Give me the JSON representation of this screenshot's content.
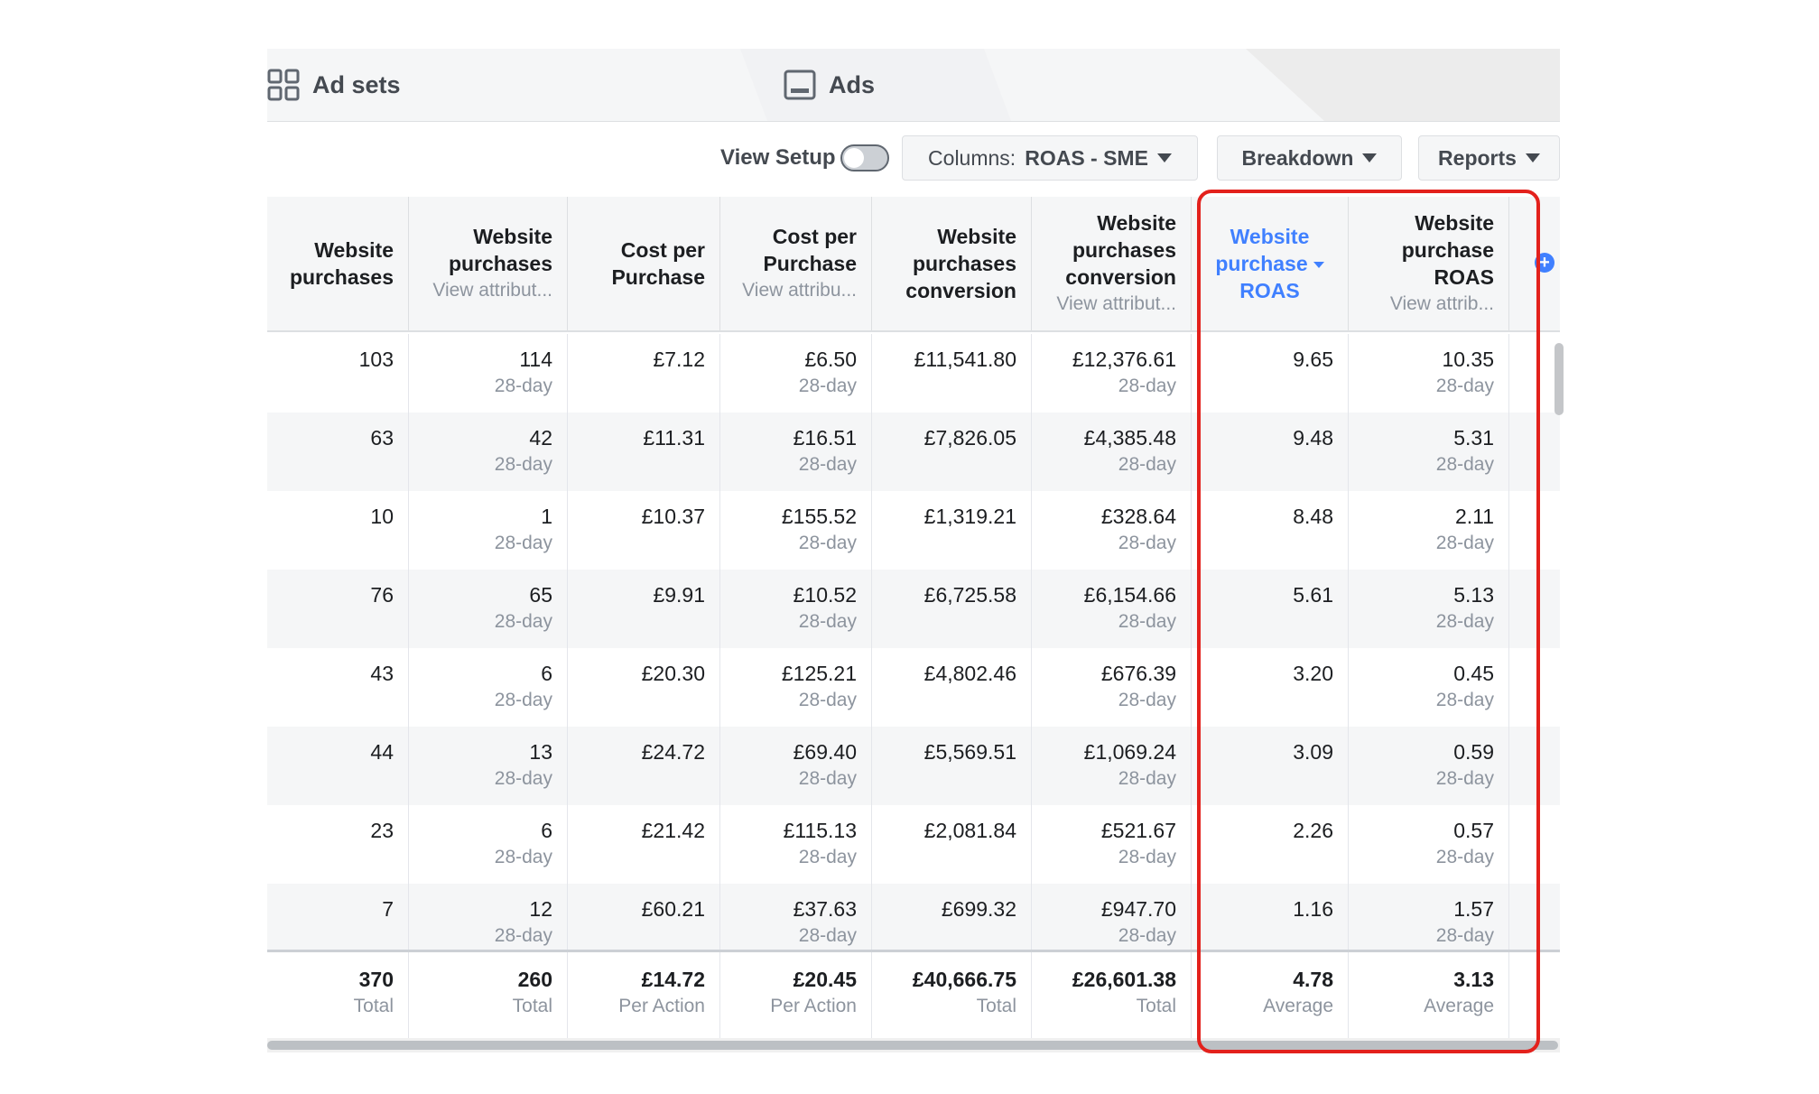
{
  "tabs": [
    {
      "label": "Ad sets",
      "icon": "grid-icon"
    },
    {
      "label": "Ads",
      "icon": "ad-preview-icon"
    }
  ],
  "toolbar": {
    "view_setup_label": "View Setup",
    "view_setup_on": false,
    "columns_prefix": "Columns:",
    "columns_value": "ROAS - SME",
    "breakdown_label": "Breakdown",
    "reports_label": "Reports"
  },
  "columns": [
    {
      "lines": [
        "Website",
        "purchases"
      ],
      "sub": ""
    },
    {
      "lines": [
        "Website",
        "purchases"
      ],
      "sub": "View attribut..."
    },
    {
      "lines": [
        "Cost per",
        "Purchase"
      ],
      "sub": ""
    },
    {
      "lines": [
        "Cost per",
        "Purchase"
      ],
      "sub": "View attribu..."
    },
    {
      "lines": [
        "Website",
        "purchases",
        "conversion"
      ],
      "sub": ""
    },
    {
      "lines": [
        "Website",
        "purchases",
        "conversion"
      ],
      "sub": "View attribut..."
    },
    {
      "lines": [
        "Website",
        "purchase",
        "ROAS"
      ],
      "sub": ""
    },
    {
      "lines": [
        "Website",
        "purchase",
        "ROAS"
      ],
      "sub": "View attrib..."
    }
  ],
  "rows": [
    {
      "cells": [
        {
          "v": "103",
          "s": ""
        },
        {
          "v": "114",
          "s": "28-day"
        },
        {
          "v": "£7.12",
          "s": ""
        },
        {
          "v": "£6.50",
          "s": "28-day"
        },
        {
          "v": "£11,541.80",
          "s": ""
        },
        {
          "v": "£12,376.61",
          "s": "28-day"
        },
        {
          "v": "9.65",
          "s": ""
        },
        {
          "v": "10.35",
          "s": "28-day"
        }
      ]
    },
    {
      "cells": [
        {
          "v": "63",
          "s": ""
        },
        {
          "v": "42",
          "s": "28-day"
        },
        {
          "v": "£11.31",
          "s": ""
        },
        {
          "v": "£16.51",
          "s": "28-day"
        },
        {
          "v": "£7,826.05",
          "s": ""
        },
        {
          "v": "£4,385.48",
          "s": "28-day"
        },
        {
          "v": "9.48",
          "s": ""
        },
        {
          "v": "5.31",
          "s": "28-day"
        }
      ]
    },
    {
      "cells": [
        {
          "v": "10",
          "s": ""
        },
        {
          "v": "1",
          "s": "28-day"
        },
        {
          "v": "£10.37",
          "s": ""
        },
        {
          "v": "£155.52",
          "s": "28-day"
        },
        {
          "v": "£1,319.21",
          "s": ""
        },
        {
          "v": "£328.64",
          "s": "28-day"
        },
        {
          "v": "8.48",
          "s": ""
        },
        {
          "v": "2.11",
          "s": "28-day"
        }
      ]
    },
    {
      "cells": [
        {
          "v": "76",
          "s": ""
        },
        {
          "v": "65",
          "s": "28-day"
        },
        {
          "v": "£9.91",
          "s": ""
        },
        {
          "v": "£10.52",
          "s": "28-day"
        },
        {
          "v": "£6,725.58",
          "s": ""
        },
        {
          "v": "£6,154.66",
          "s": "28-day"
        },
        {
          "v": "5.61",
          "s": ""
        },
        {
          "v": "5.13",
          "s": "28-day"
        }
      ]
    },
    {
      "cells": [
        {
          "v": "43",
          "s": ""
        },
        {
          "v": "6",
          "s": "28-day"
        },
        {
          "v": "£20.30",
          "s": ""
        },
        {
          "v": "£125.21",
          "s": "28-day"
        },
        {
          "v": "£4,802.46",
          "s": ""
        },
        {
          "v": "£676.39",
          "s": "28-day"
        },
        {
          "v": "3.20",
          "s": ""
        },
        {
          "v": "0.45",
          "s": "28-day"
        }
      ]
    },
    {
      "cells": [
        {
          "v": "44",
          "s": ""
        },
        {
          "v": "13",
          "s": "28-day"
        },
        {
          "v": "£24.72",
          "s": ""
        },
        {
          "v": "£69.40",
          "s": "28-day"
        },
        {
          "v": "£5,569.51",
          "s": ""
        },
        {
          "v": "£1,069.24",
          "s": "28-day"
        },
        {
          "v": "3.09",
          "s": ""
        },
        {
          "v": "0.59",
          "s": "28-day"
        }
      ]
    },
    {
      "cells": [
        {
          "v": "23",
          "s": ""
        },
        {
          "v": "6",
          "s": "28-day"
        },
        {
          "v": "£21.42",
          "s": ""
        },
        {
          "v": "£115.13",
          "s": "28-day"
        },
        {
          "v": "£2,081.84",
          "s": ""
        },
        {
          "v": "£521.67",
          "s": "28-day"
        },
        {
          "v": "2.26",
          "s": ""
        },
        {
          "v": "0.57",
          "s": "28-day"
        }
      ]
    },
    {
      "cells": [
        {
          "v": "7",
          "s": ""
        },
        {
          "v": "12",
          "s": "28-day"
        },
        {
          "v": "£60.21",
          "s": ""
        },
        {
          "v": "£37.63",
          "s": "28-day"
        },
        {
          "v": "£699.32",
          "s": ""
        },
        {
          "v": "£947.70",
          "s": "28-day"
        },
        {
          "v": "1.16",
          "s": ""
        },
        {
          "v": "1.57",
          "s": "28-day"
        }
      ]
    }
  ],
  "totals": [
    {
      "v": "370",
      "s": "Total"
    },
    {
      "v": "260",
      "s": "Total"
    },
    {
      "v": "£14.72",
      "s": "Per Action"
    },
    {
      "v": "£20.45",
      "s": "Per Action"
    },
    {
      "v": "£40,666.75",
      "s": "Total"
    },
    {
      "v": "£26,601.38",
      "s": "Total"
    },
    {
      "v": "4.78",
      "s": "Average"
    },
    {
      "v": "3.13",
      "s": "Average"
    }
  ],
  "colors": {
    "accent": "#4080ff",
    "highlight": "#e3211c"
  }
}
